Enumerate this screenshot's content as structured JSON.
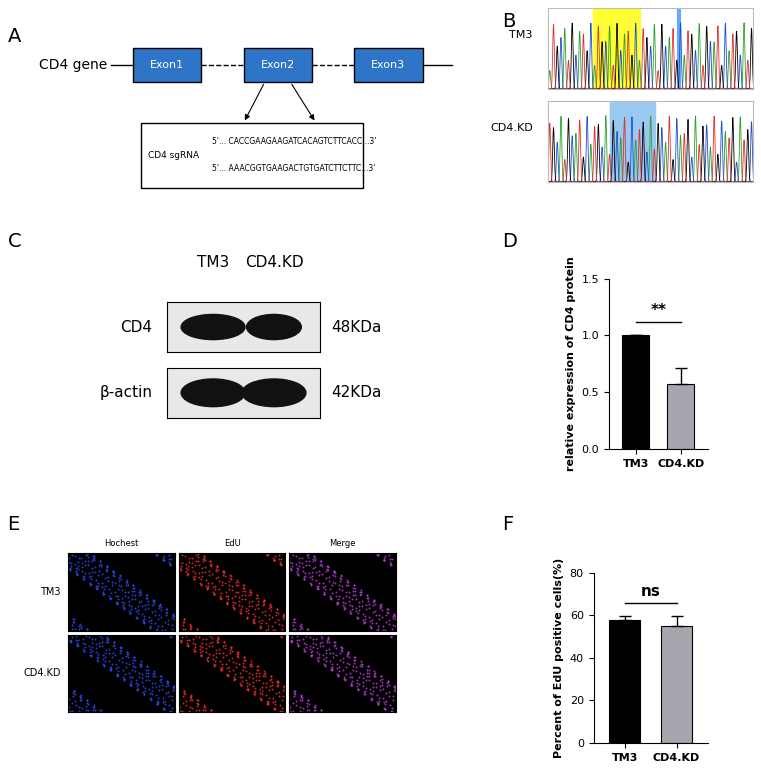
{
  "panel_labels": [
    "A",
    "B",
    "C",
    "D",
    "E",
    "F"
  ],
  "gene_diagram": {
    "gene": "CD4 gene",
    "exons": [
      "Exon1",
      "Exon2",
      "Exon3"
    ],
    "sgrna_label": "CD4 sgRNA",
    "sequences": [
      "5'... CACCGAAGAAGATCACAGTCTTCACC...3'",
      "5'... AAACGGTGAAGACTGTGATCTTCTTC...3'"
    ]
  },
  "chromatogram": {
    "rows": [
      "TM3",
      "CD4.KD"
    ]
  },
  "western_blot": {
    "lanes": [
      "TM3",
      "CD4.KD"
    ],
    "bands": [
      {
        "name": "CD4",
        "size": "48KDa"
      },
      {
        "name": "β-actin",
        "size": "42KDa"
      }
    ]
  },
  "microscopy": {
    "columns": [
      "Hochest",
      "EdU",
      "Merge"
    ],
    "rows": [
      "TM3",
      "CD4.KD"
    ]
  },
  "chart_data": [
    {
      "type": "bar",
      "categories": [
        "TM3",
        "CD4.KD"
      ],
      "values": [
        1.0,
        0.57
      ],
      "errors": [
        0,
        0.14
      ],
      "colors": [
        "#000000",
        "#a6a6ae"
      ],
      "ylabel": "relative expression of CD4 protein",
      "ylim": [
        0,
        1.5
      ],
      "yticks": [
        {
          "value": 0,
          "label": "0.0"
        },
        {
          "value": 0.5,
          "label": "0.5"
        },
        {
          "value": 1.0,
          "label": "1.0"
        },
        {
          "value": 1.5,
          "label": "1.5"
        }
      ],
      "annotation": "**"
    },
    {
      "type": "bar",
      "categories": [
        "TM3",
        "CD4.KD"
      ],
      "values": [
        58,
        55
      ],
      "errors": [
        1.5,
        4.5
      ],
      "colors": [
        "#000000",
        "#a6a6ae"
      ],
      "ylabel": "Percent of EdU positive cells(%)",
      "ylim": [
        0,
        80
      ],
      "yticks": [
        0,
        20,
        40,
        60,
        80
      ],
      "annotation": "ns"
    }
  ]
}
